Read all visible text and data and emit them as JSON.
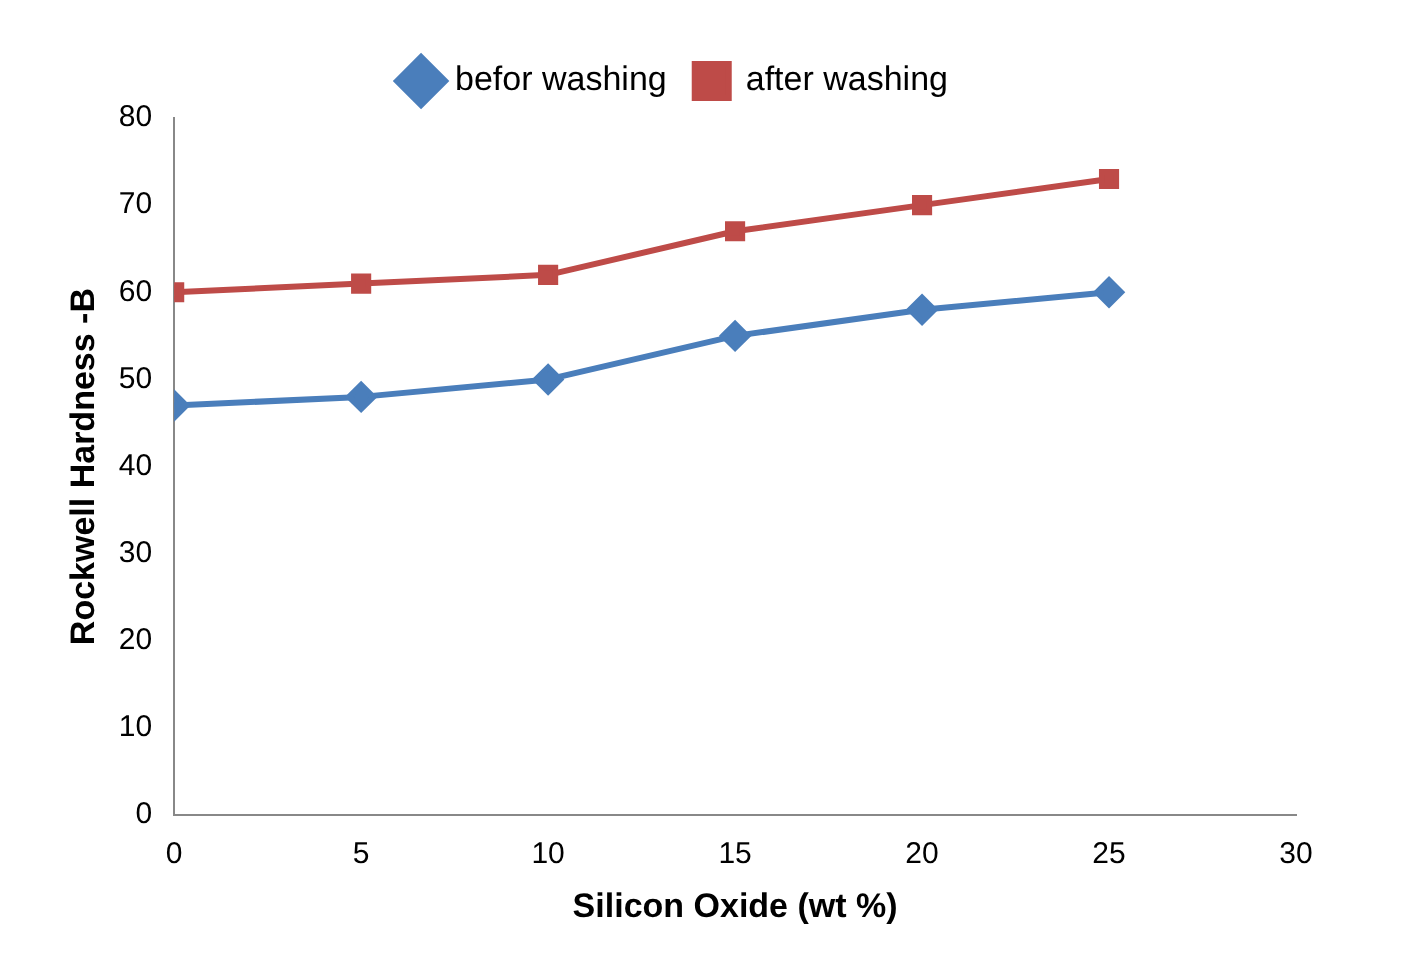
{
  "chart_data": {
    "type": "line",
    "xlabel": "Silicon Oxide (wt %)",
    "ylabel": "Rockwell Hardness -B",
    "x": [
      0,
      5,
      10,
      15,
      20,
      25
    ],
    "series": [
      {
        "name": "befor washing",
        "color": "#4a7ebb",
        "values": [
          47,
          48,
          50,
          55,
          58,
          60
        ],
        "marker": "diamond"
      },
      {
        "name": "after washing",
        "color": "#be4b48",
        "values": [
          60,
          61,
          62,
          67,
          70,
          73
        ],
        "marker": "square"
      }
    ],
    "xlim": [
      0,
      30
    ],
    "xticks": [
      0,
      5,
      10,
      15,
      20,
      25,
      30
    ],
    "ylim": [
      0,
      80
    ],
    "yticks": [
      0,
      10,
      20,
      30,
      40,
      50,
      60,
      70,
      80
    ],
    "grid": false,
    "legend": "top",
    "line_style": "solid"
  }
}
